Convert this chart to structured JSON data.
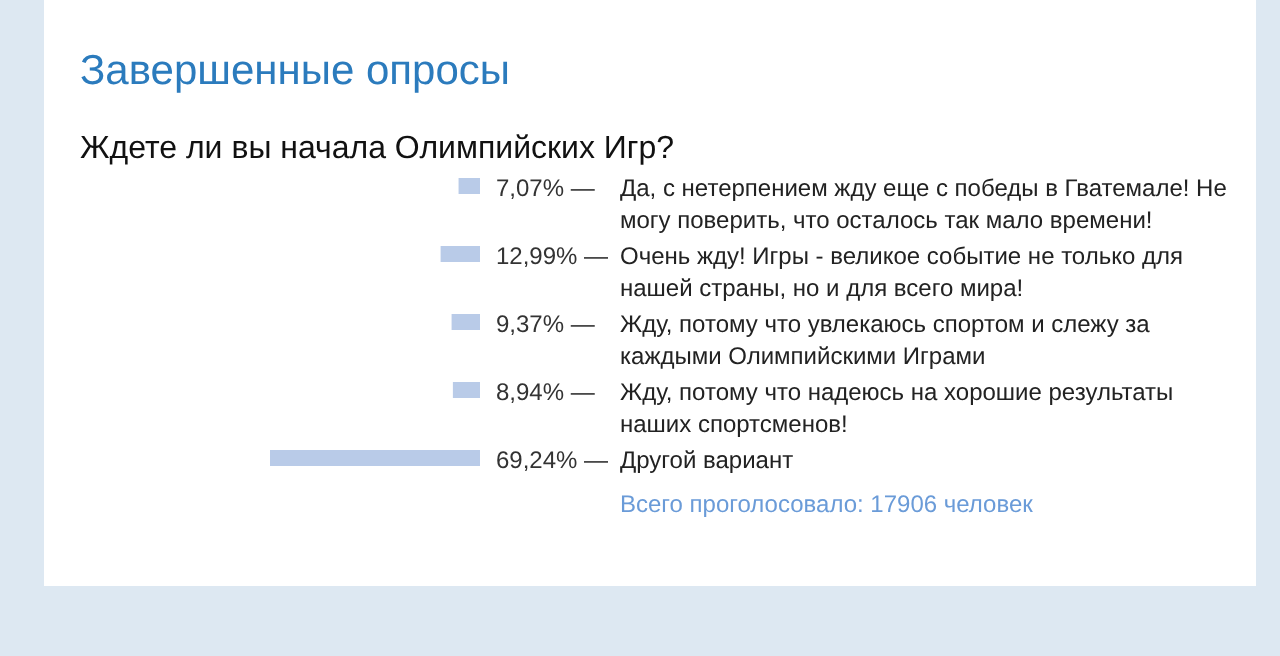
{
  "chart_data": {
    "type": "bar",
    "orientation": "horizontal",
    "title": "Завершенные опросы",
    "subtitle": "Ждете ли вы начала Олимпийских Игр?",
    "categories": [
      "Да, с нетерпением жду еще с победы в Гватемале! Не могу поверить, что осталось так мало времени!",
      "Очень жду! Игры - великое событие не только для нашей страны, но и для всего мира!",
      "Жду, потому что увлекаюсь спортом и слежу за каждыми Олимпийскими Играми",
      "Жду, потому что надеюсь на хорошие результаты наших спортсменов!",
      "Другой вариант"
    ],
    "values": [
      7.07,
      12.99,
      9.37,
      8.94,
      69.24
    ],
    "value_labels": [
      "7,07% —",
      "12,99% —",
      "9,37% —",
      "8,94% —",
      "69,24% —"
    ],
    "color": "#b9cbe8",
    "annotations": [
      "Всего проголосовало: 17906 человек"
    ]
  }
}
